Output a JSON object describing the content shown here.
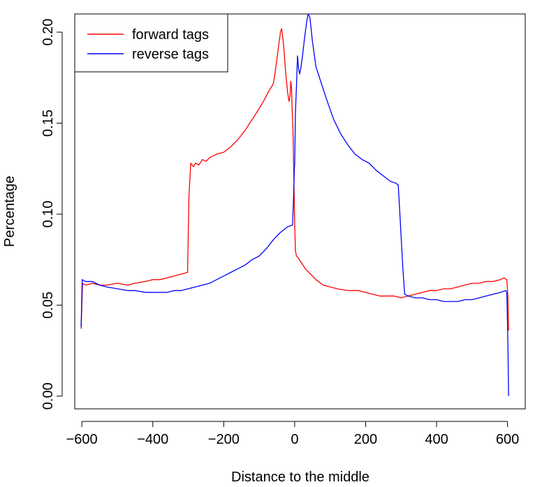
{
  "chart_data": {
    "type": "line",
    "title": "",
    "xlabel": "Distance to the middle",
    "ylabel": "Percentage",
    "xlim": [
      -620,
      650
    ],
    "ylim": [
      -0.007,
      0.21
    ],
    "xticks": [
      -600,
      -400,
      -200,
      0,
      200,
      400,
      600
    ],
    "xtick_labels": [
      "−600",
      "−400",
      "−200",
      "0",
      "200",
      "400",
      "600"
    ],
    "yticks": [
      0.0,
      0.05,
      0.1,
      0.15,
      0.2
    ],
    "ytick_labels": [
      "0.00",
      "0.05",
      "0.10",
      "0.15",
      "0.20"
    ],
    "grid": false,
    "legend_position": "top-left",
    "series": [
      {
        "name": "forward tags",
        "color": "#ff0000",
        "points": [
          [
            -602,
            0.037
          ],
          [
            -598,
            0.062
          ],
          [
            -590,
            0.061
          ],
          [
            -570,
            0.062
          ],
          [
            -550,
            0.061
          ],
          [
            -530,
            0.061
          ],
          [
            -500,
            0.062
          ],
          [
            -470,
            0.061
          ],
          [
            -450,
            0.062
          ],
          [
            -420,
            0.063
          ],
          [
            -400,
            0.064
          ],
          [
            -380,
            0.064
          ],
          [
            -360,
            0.065
          ],
          [
            -340,
            0.066
          ],
          [
            -320,
            0.067
          ],
          [
            -302,
            0.068
          ],
          [
            -298,
            0.11
          ],
          [
            -293,
            0.128
          ],
          [
            -285,
            0.126
          ],
          [
            -280,
            0.128
          ],
          [
            -270,
            0.127
          ],
          [
            -260,
            0.13
          ],
          [
            -250,
            0.129
          ],
          [
            -240,
            0.131
          ],
          [
            -220,
            0.133
          ],
          [
            -200,
            0.134
          ],
          [
            -180,
            0.137
          ],
          [
            -160,
            0.141
          ],
          [
            -140,
            0.146
          ],
          [
            -120,
            0.152
          ],
          [
            -100,
            0.158
          ],
          [
            -85,
            0.163
          ],
          [
            -72,
            0.168
          ],
          [
            -65,
            0.17
          ],
          [
            -60,
            0.172
          ],
          [
            -55,
            0.178
          ],
          [
            -50,
            0.185
          ],
          [
            -45,
            0.193
          ],
          [
            -40,
            0.2
          ],
          [
            -37,
            0.202
          ],
          [
            -34,
            0.198
          ],
          [
            -30,
            0.19
          ],
          [
            -25,
            0.177
          ],
          [
            -20,
            0.167
          ],
          [
            -16,
            0.162
          ],
          [
            -13,
            0.165
          ],
          [
            -11,
            0.173
          ],
          [
            -9,
            0.17
          ],
          [
            -7,
            0.157
          ],
          [
            -5,
            0.148
          ],
          [
            -3,
            0.127
          ],
          [
            -1,
            0.105
          ],
          [
            0,
            0.095
          ],
          [
            2,
            0.08
          ],
          [
            5,
            0.077
          ],
          [
            10,
            0.076
          ],
          [
            20,
            0.073
          ],
          [
            30,
            0.07
          ],
          [
            45,
            0.067
          ],
          [
            60,
            0.064
          ],
          [
            80,
            0.061
          ],
          [
            100,
            0.06
          ],
          [
            120,
            0.059
          ],
          [
            150,
            0.058
          ],
          [
            180,
            0.058
          ],
          [
            200,
            0.057
          ],
          [
            220,
            0.056
          ],
          [
            240,
            0.055
          ],
          [
            260,
            0.055
          ],
          [
            280,
            0.055
          ],
          [
            300,
            0.054
          ],
          [
            320,
            0.055
          ],
          [
            340,
            0.056
          ],
          [
            360,
            0.057
          ],
          [
            380,
            0.058
          ],
          [
            400,
            0.058
          ],
          [
            420,
            0.059
          ],
          [
            440,
            0.059
          ],
          [
            460,
            0.06
          ],
          [
            480,
            0.061
          ],
          [
            500,
            0.062
          ],
          [
            520,
            0.062
          ],
          [
            540,
            0.063
          ],
          [
            560,
            0.063
          ],
          [
            580,
            0.064
          ],
          [
            590,
            0.065
          ],
          [
            598,
            0.064
          ],
          [
            601,
            0.055
          ],
          [
            603,
            0.036
          ]
        ]
      },
      {
        "name": "reverse tags",
        "color": "#0000ff",
        "points": [
          [
            -602,
            0.038
          ],
          [
            -599,
            0.064
          ],
          [
            -590,
            0.063
          ],
          [
            -570,
            0.063
          ],
          [
            -550,
            0.061
          ],
          [
            -530,
            0.06
          ],
          [
            -500,
            0.059
          ],
          [
            -470,
            0.058
          ],
          [
            -450,
            0.058
          ],
          [
            -420,
            0.057
          ],
          [
            -400,
            0.057
          ],
          [
            -380,
            0.057
          ],
          [
            -360,
            0.057
          ],
          [
            -340,
            0.058
          ],
          [
            -320,
            0.058
          ],
          [
            -300,
            0.059
          ],
          [
            -280,
            0.06
          ],
          [
            -260,
            0.061
          ],
          [
            -240,
            0.062
          ],
          [
            -220,
            0.064
          ],
          [
            -200,
            0.066
          ],
          [
            -180,
            0.068
          ],
          [
            -160,
            0.07
          ],
          [
            -140,
            0.072
          ],
          [
            -120,
            0.075
          ],
          [
            -100,
            0.077
          ],
          [
            -80,
            0.081
          ],
          [
            -60,
            0.086
          ],
          [
            -40,
            0.09
          ],
          [
            -20,
            0.093
          ],
          [
            -6,
            0.094
          ],
          [
            -3,
            0.11
          ],
          [
            -1,
            0.125
          ],
          [
            0,
            0.127
          ],
          [
            2,
            0.155
          ],
          [
            5,
            0.17
          ],
          [
            8,
            0.187
          ],
          [
            11,
            0.18
          ],
          [
            14,
            0.177
          ],
          [
            18,
            0.181
          ],
          [
            22,
            0.187
          ],
          [
            28,
            0.197
          ],
          [
            34,
            0.206
          ],
          [
            38,
            0.21
          ],
          [
            43,
            0.208
          ],
          [
            50,
            0.195
          ],
          [
            60,
            0.181
          ],
          [
            75,
            0.172
          ],
          [
            90,
            0.163
          ],
          [
            110,
            0.152
          ],
          [
            130,
            0.144
          ],
          [
            150,
            0.138
          ],
          [
            170,
            0.133
          ],
          [
            190,
            0.13
          ],
          [
            210,
            0.128
          ],
          [
            230,
            0.124
          ],
          [
            250,
            0.121
          ],
          [
            270,
            0.118
          ],
          [
            285,
            0.117
          ],
          [
            292,
            0.116
          ],
          [
            298,
            0.095
          ],
          [
            305,
            0.07
          ],
          [
            310,
            0.056
          ],
          [
            320,
            0.055
          ],
          [
            340,
            0.054
          ],
          [
            360,
            0.054
          ],
          [
            380,
            0.053
          ],
          [
            400,
            0.053
          ],
          [
            420,
            0.052
          ],
          [
            440,
            0.052
          ],
          [
            460,
            0.052
          ],
          [
            480,
            0.053
          ],
          [
            500,
            0.053
          ],
          [
            520,
            0.054
          ],
          [
            540,
            0.055
          ],
          [
            560,
            0.056
          ],
          [
            580,
            0.057
          ],
          [
            595,
            0.058
          ],
          [
            598,
            0.057
          ],
          [
            601,
            0.03
          ],
          [
            603,
            0.0
          ]
        ]
      }
    ]
  }
}
